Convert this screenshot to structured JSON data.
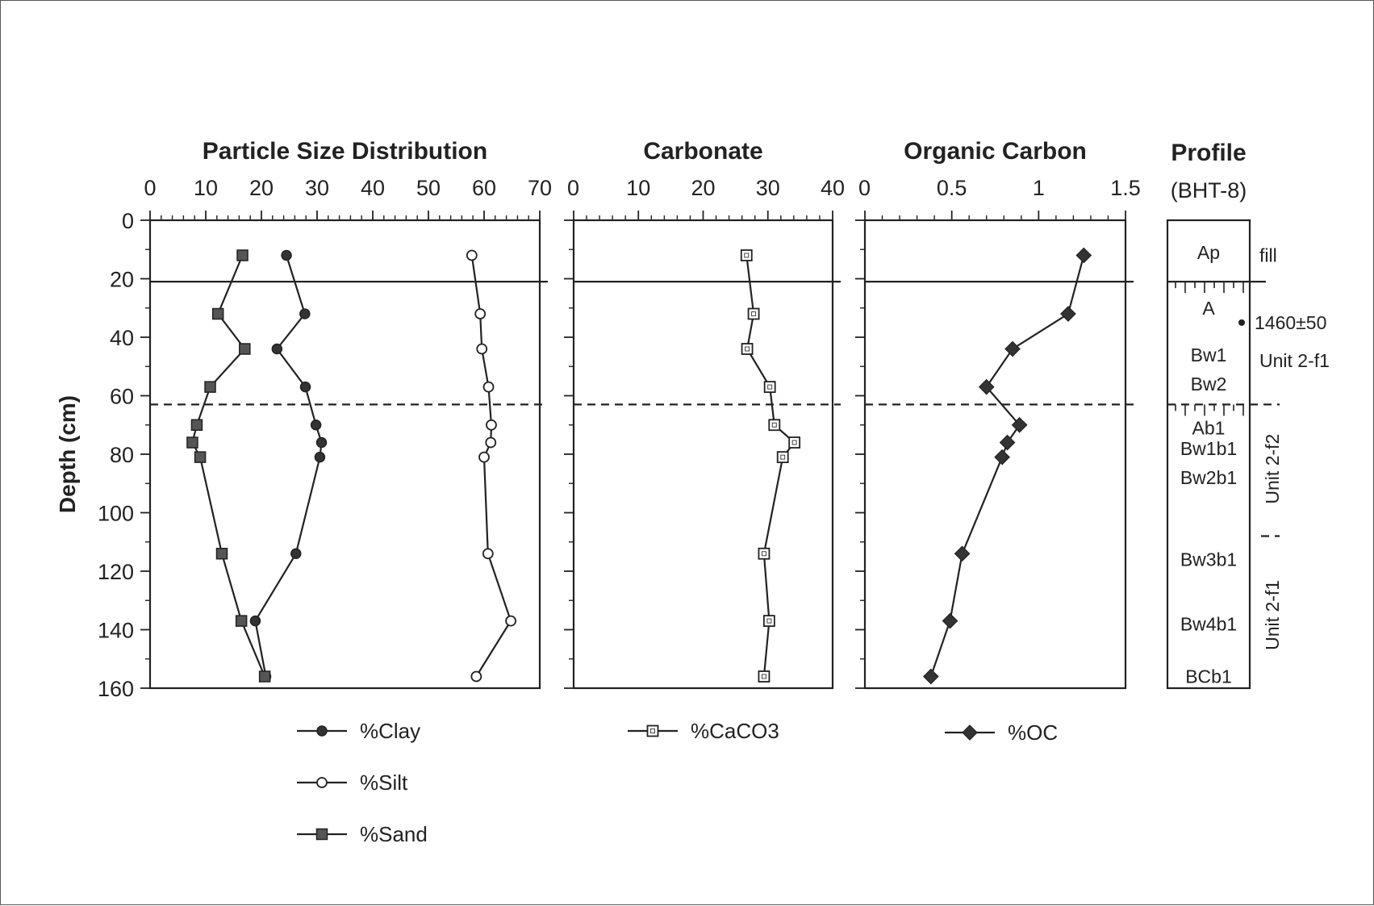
{
  "chart_data": [
    {
      "type": "line",
      "title": "Particle Size Distribution",
      "xlim": [
        0,
        70
      ],
      "xticks": [
        "0",
        "10",
        "20",
        "30",
        "40",
        "50",
        "60",
        "70"
      ],
      "ylabel": "Depth (cm)",
      "ylim": [
        0,
        160
      ],
      "yticks": [
        "0",
        "20",
        "40",
        "60",
        "80",
        "100",
        "120",
        "140",
        "160"
      ],
      "series": [
        {
          "name": "%Clay",
          "marker": "filled-circle",
          "x": [
            24.5,
            27.8,
            22.8,
            27.9,
            29.8,
            30.8,
            30.5,
            26.2,
            18.9,
            20.8
          ],
          "y": [
            12,
            32,
            44,
            57,
            70,
            76,
            81,
            114,
            137,
            156
          ]
        },
        {
          "name": "%Silt",
          "marker": "open-circle",
          "x": [
            57.8,
            59.3,
            59.6,
            60.8,
            61.3,
            61.2,
            60.0,
            60.7,
            64.8,
            58.6
          ],
          "y": [
            12,
            32,
            44,
            57,
            70,
            76,
            81,
            114,
            137,
            156
          ]
        },
        {
          "name": "%Sand",
          "marker": "filled-square",
          "x": [
            16.6,
            12.2,
            17.0,
            10.8,
            8.4,
            7.6,
            9.0,
            12.9,
            16.4,
            20.6
          ],
          "y": [
            12,
            32,
            44,
            57,
            70,
            76,
            81,
            114,
            137,
            156
          ]
        }
      ],
      "hlines": [
        {
          "y": 21,
          "style": "solid"
        },
        {
          "y": 63,
          "style": "dashed"
        }
      ]
    },
    {
      "type": "line",
      "title": "Carbonate",
      "xlim": [
        0,
        40
      ],
      "xticks": [
        "0",
        "10",
        "20",
        "30",
        "40"
      ],
      "ylim": [
        0,
        160
      ],
      "series": [
        {
          "name": "%CaCO3",
          "marker": "open-square",
          "x": [
            26.7,
            27.8,
            26.8,
            30.3,
            31.0,
            34.1,
            32.3,
            29.4,
            30.2,
            29.4
          ],
          "y": [
            12,
            32,
            44,
            57,
            70,
            76,
            81,
            114,
            137,
            156
          ]
        }
      ],
      "hlines": [
        {
          "y": 21,
          "style": "solid"
        },
        {
          "y": 63,
          "style": "dashed"
        }
      ]
    },
    {
      "type": "line",
      "title": "Organic Carbon",
      "xlim": [
        0,
        1.5
      ],
      "xticks": [
        "0",
        "0.5",
        "1",
        "1.5"
      ],
      "ylim": [
        0,
        160
      ],
      "series": [
        {
          "name": "%OC",
          "marker": "filled-diamond",
          "x": [
            1.26,
            1.17,
            0.85,
            0.7,
            0.89,
            0.82,
            0.79,
            0.56,
            0.49,
            0.38
          ],
          "y": [
            12,
            32,
            44,
            57,
            70,
            76,
            81,
            114,
            137,
            156
          ]
        }
      ],
      "hlines": [
        {
          "y": 21,
          "style": "solid"
        },
        {
          "y": 63,
          "style": "dashed"
        }
      ]
    }
  ],
  "profile": {
    "title": "Profile",
    "subtitle": "(BHT-8)",
    "horizons": [
      {
        "label": "Ap",
        "y": 11
      },
      {
        "label": "A",
        "y": 30
      },
      {
        "label": "Bw1",
        "y": 46
      },
      {
        "label": "Bw2",
        "y": 56
      },
      {
        "label": "Ab1",
        "y": 71
      },
      {
        "label": "Bw1b1",
        "y": 78
      },
      {
        "label": "Bw2b1",
        "y": 88
      },
      {
        "label": "Bw3b1",
        "y": 116
      },
      {
        "label": "Bw4b1",
        "y": 138
      },
      {
        "label": "BCb1",
        "y": 156
      }
    ],
    "boundaries": [
      {
        "y": 21,
        "style": "solid"
      },
      {
        "y": 63,
        "style": "dashed"
      },
      {
        "y": 108,
        "style": "dashed-right"
      }
    ],
    "side_labels": {
      "fill": "fill",
      "date": "1460±50",
      "unit_top": "Unit 2-f1",
      "unit_mid": "Unit 2-f2",
      "unit_bottom": "Unit 2-f1"
    },
    "date_depth": 35
  },
  "legend": [
    {
      "name": "%Clay",
      "marker": "filled-circle"
    },
    {
      "name": "%Silt",
      "marker": "open-circle"
    },
    {
      "name": "%Sand",
      "marker": "filled-square"
    },
    {
      "name": "%CaCO3",
      "marker": "open-square"
    },
    {
      "name": "%OC",
      "marker": "filled-diamond"
    }
  ]
}
